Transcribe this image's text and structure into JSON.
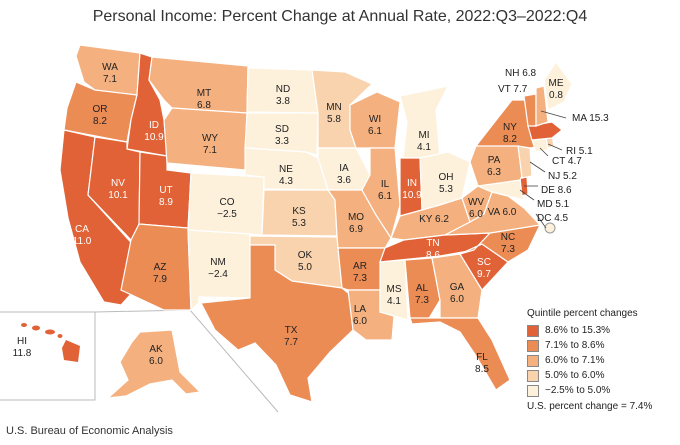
{
  "title": "Personal Income: Percent Change at Annual Rate, 2022:Q3–2022:Q4",
  "source": "U.S. Bureau of Economic Analysis",
  "legend": {
    "title": "Quintile percent changes",
    "items": [
      {
        "label": "8.6% to 15.3%",
        "color": "#e06236"
      },
      {
        "label": "7.1% to 8.6%",
        "color": "#ec8c55"
      },
      {
        "label": "6.0% to 7.1%",
        "color": "#f4b07e"
      },
      {
        "label": "5.0% to 6.0%",
        "color": "#f9d3ad"
      },
      {
        "label": "−2.5% to 5.0%",
        "color": "#fdf1dc"
      }
    ],
    "us_change": "U.S. percent change = 7.4%"
  },
  "states": {
    "WA": {
      "abbr": "WA",
      "value": "7.1"
    },
    "OR": {
      "abbr": "OR",
      "value": "8.2"
    },
    "CA": {
      "abbr": "CA",
      "value": "11.0"
    },
    "ID": {
      "abbr": "ID",
      "value": "10.9"
    },
    "NV": {
      "abbr": "NV",
      "value": "10.1"
    },
    "MT": {
      "abbr": "MT",
      "value": "6.8"
    },
    "WY": {
      "abbr": "WY",
      "value": "7.1"
    },
    "UT": {
      "abbr": "UT",
      "value": "8.9"
    },
    "AZ": {
      "abbr": "AZ",
      "value": "7.9"
    },
    "CO": {
      "abbr": "CO",
      "value": "−2.5"
    },
    "NM": {
      "abbr": "NM",
      "value": "−2.4"
    },
    "ND": {
      "abbr": "ND",
      "value": "3.8"
    },
    "SD": {
      "abbr": "SD",
      "value": "3.3"
    },
    "NE": {
      "abbr": "NE",
      "value": "4.3"
    },
    "KS": {
      "abbr": "KS",
      "value": "5.3"
    },
    "OK": {
      "abbr": "OK",
      "value": "5.0"
    },
    "TX": {
      "abbr": "TX",
      "value": "7.7"
    },
    "MN": {
      "abbr": "MN",
      "value": "5.8"
    },
    "IA": {
      "abbr": "IA",
      "value": "3.6"
    },
    "MO": {
      "abbr": "MO",
      "value": "6.9"
    },
    "AR": {
      "abbr": "AR",
      "value": "7.3"
    },
    "LA": {
      "abbr": "LA",
      "value": "6.0"
    },
    "WI": {
      "abbr": "WI",
      "value": "6.1"
    },
    "IL": {
      "abbr": "IL",
      "value": "6.1"
    },
    "MI": {
      "abbr": "MI",
      "value": "4.1"
    },
    "IN": {
      "abbr": "IN",
      "value": "10.9"
    },
    "OH": {
      "abbr": "OH",
      "value": "5.3"
    },
    "KY": {
      "abbr": "KY",
      "value": "6.2"
    },
    "TN": {
      "abbr": "TN",
      "value": "8.6"
    },
    "MS": {
      "abbr": "MS",
      "value": "4.1"
    },
    "AL": {
      "abbr": "AL",
      "value": "7.3"
    },
    "GA": {
      "abbr": "GA",
      "value": "6.0"
    },
    "FL": {
      "abbr": "FL",
      "value": "8.5"
    },
    "SC": {
      "abbr": "SC",
      "value": "9.7"
    },
    "NC": {
      "abbr": "NC",
      "value": "7.3"
    },
    "VA": {
      "abbr": "VA",
      "value": "6.0"
    },
    "WV": {
      "abbr": "WV",
      "value": "6.0"
    },
    "PA": {
      "abbr": "PA",
      "value": "6.3"
    },
    "NY": {
      "abbr": "NY",
      "value": "8.2"
    },
    "AK": {
      "abbr": "AK",
      "value": "6.0"
    },
    "HI": {
      "abbr": "HI",
      "value": "11.8"
    },
    "ME": {
      "abbr": "ME",
      "value": "0.8"
    },
    "NH": {
      "text": "NH 6.8"
    },
    "VT": {
      "text": "VT 7.7"
    },
    "MA": {
      "text": "MA 15.3"
    },
    "RI": {
      "text": "RI 5.1"
    },
    "CT": {
      "text": "CT 4.7"
    },
    "NJ": {
      "text": "NJ 5.2"
    },
    "DE": {
      "text": "DE 8.6"
    },
    "MD": {
      "text": "MD 5.1"
    },
    "DC": {
      "text": "DC 4.5"
    }
  }
}
